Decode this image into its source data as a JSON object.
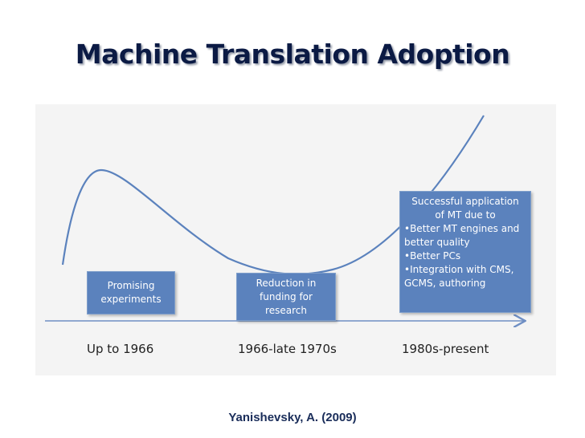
{
  "title": "Machine Translation Adoption",
  "boxes": [
    {
      "lines": [
        "Promising",
        "experiments"
      ]
    },
    {
      "lines": [
        "Reduction in",
        "funding for",
        "research"
      ]
    },
    {
      "lines": [
        "Successful application",
        "of MT due to",
        "•Better MT engines and",
        "better quality",
        "•Better PCs",
        "•Integration with CMS,",
        "GCMS, authoring"
      ]
    }
  ],
  "periods": [
    "Up to 1966",
    "1966-late 1970s",
    "1980s-present"
  ],
  "citation": "Yanishevsky, A. (2009)",
  "colors": {
    "curve": "#5b82bd",
    "box_fill": "#5b82bd",
    "axis": "#6f8fc4",
    "title": "#0b1a44"
  }
}
